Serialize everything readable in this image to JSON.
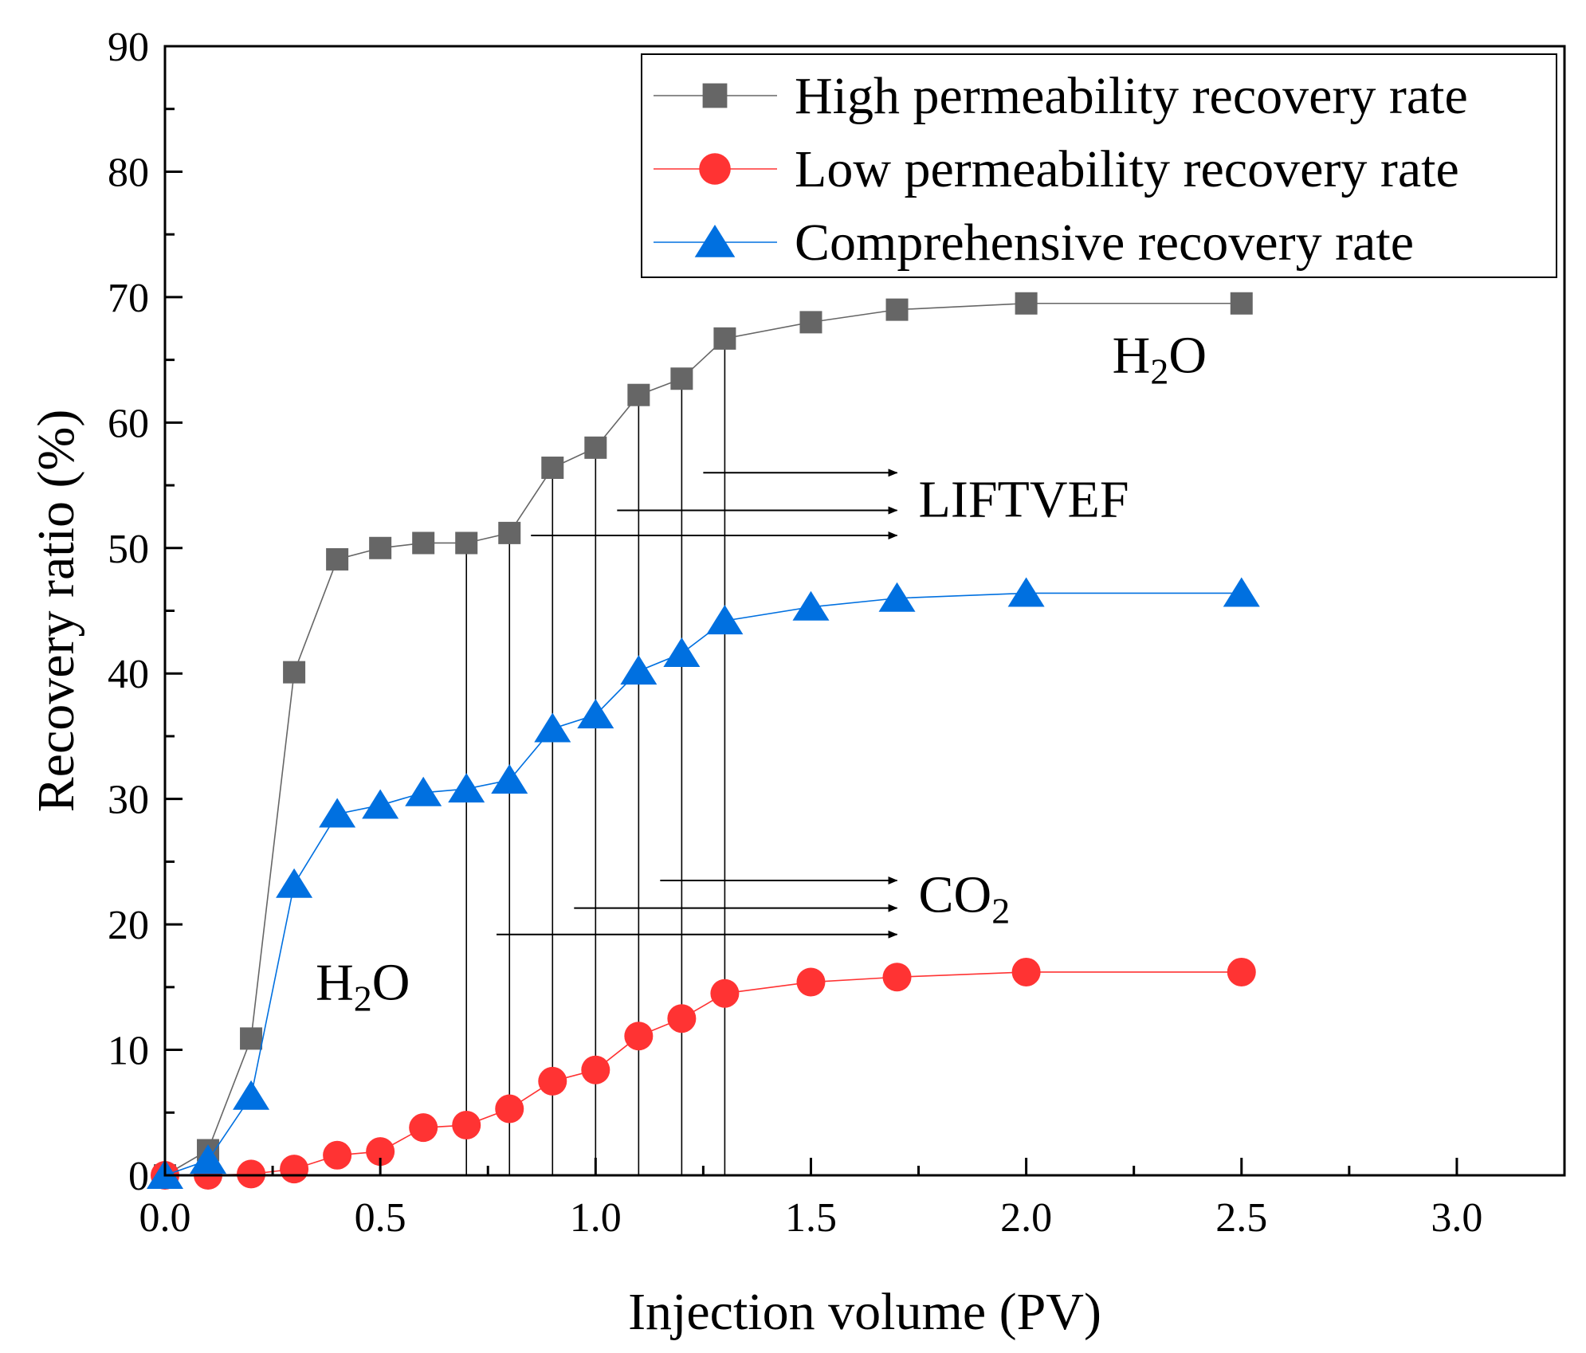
{
  "chart_data": {
    "type": "line",
    "xlabel": "Injection volume  (PV)",
    "ylabel": "Recovery ratio  (%)",
    "xlim": [
      0,
      3.25
    ],
    "ylim": [
      0,
      90
    ],
    "x_ticks": [
      "0.0",
      "0.5",
      "1.0",
      "1.5",
      "2.0",
      "2.5",
      "3.0"
    ],
    "y_ticks": [
      "0",
      "10",
      "20",
      "30",
      "40",
      "50",
      "60",
      "70",
      "80",
      "90"
    ],
    "legend_position": "top-right",
    "series": [
      {
        "name": "High permeability recovery rate",
        "color": "#666666",
        "marker": "square",
        "x": [
          0,
          0.1,
          0.2,
          0.3,
          0.4,
          0.5,
          0.6,
          0.7,
          0.8,
          0.9,
          1.0,
          1.1,
          1.2,
          1.3,
          1.5,
          1.7,
          2.0,
          2.5
        ],
        "y": [
          0,
          2.0,
          10.9,
          40.1,
          49.1,
          50.0,
          50.4,
          50.4,
          51.2,
          56.4,
          58.0,
          62.2,
          63.5,
          66.7,
          68.0,
          69.0,
          69.5,
          69.5
        ]
      },
      {
        "name": "Low permeability recovery rate",
        "color": "#ff3333",
        "marker": "circle",
        "x": [
          0,
          0.1,
          0.2,
          0.3,
          0.4,
          0.5,
          0.6,
          0.7,
          0.8,
          0.9,
          1.0,
          1.1,
          1.2,
          1.3,
          1.5,
          1.7,
          2.0,
          2.5
        ],
        "y": [
          0,
          0,
          0.1,
          0.5,
          1.6,
          1.9,
          3.8,
          4.0,
          5.3,
          7.5,
          8.4,
          11.1,
          12.5,
          14.5,
          15.4,
          15.8,
          16.2,
          16.2
        ]
      },
      {
        "name": "Comprehensive recovery rate",
        "color": "#0070e0",
        "marker": "triangle",
        "x": [
          0,
          0.1,
          0.2,
          0.3,
          0.4,
          0.5,
          0.6,
          0.7,
          0.8,
          0.9,
          1.0,
          1.1,
          1.2,
          1.3,
          1.5,
          1.7,
          2.0,
          2.5
        ],
        "y": [
          0,
          1.2,
          6.3,
          23.2,
          28.8,
          29.5,
          30.5,
          30.8,
          31.5,
          35.6,
          36.7,
          40.2,
          41.6,
          44.2,
          45.3,
          46.0,
          46.4,
          46.4
        ]
      }
    ],
    "vertical_lines_x": [
      0.7,
      0.8,
      0.9,
      1.0,
      1.1,
      1.2,
      1.3
    ],
    "annotations": {
      "h2o_left": {
        "base": "H",
        "sub": "2",
        "rest": "O",
        "x": 0.35,
        "y": 14
      },
      "h2o_right": {
        "base": "H",
        "sub": "2",
        "rest": "O",
        "x": 2.2,
        "y": 64
      },
      "liftvef": {
        "text": "LIFTVEF",
        "x": 1.75,
        "y": 52.5
      },
      "co2": {
        "base": "CO",
        "sub": "2",
        "x": 1.75,
        "y": 21
      },
      "liftvef_arrows": [
        {
          "x_start": 1.25,
          "x_end": 1.7,
          "y": 56
        },
        {
          "x_start": 1.05,
          "x_end": 1.7,
          "y": 53
        },
        {
          "x_start": 0.85,
          "x_end": 1.7,
          "y": 51
        }
      ],
      "co2_arrows": [
        {
          "x_start": 1.15,
          "x_end": 1.7,
          "y": 23.5
        },
        {
          "x_start": 0.95,
          "x_end": 1.7,
          "y": 21.3
        },
        {
          "x_start": 0.77,
          "x_end": 1.7,
          "y": 19.2
        }
      ]
    }
  }
}
